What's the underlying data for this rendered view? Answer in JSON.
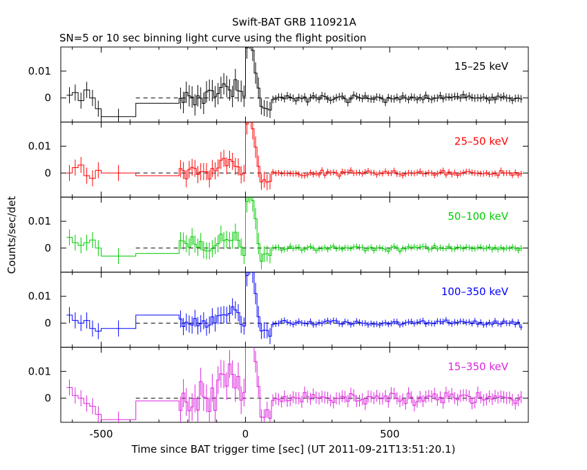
{
  "chart_data": {
    "type": "line",
    "title": "Swift-BAT GRB 110921A",
    "subtitle": "SN=5 or 10 sec binning light curve using the flight position",
    "xlabel": "Time since BAT trigger time [sec] (UT 2011-09-21T13:51:20.1)",
    "ylabel": "Counts/sec/det",
    "xlim": [
      -640,
      980
    ],
    "x_ticks": [
      -500,
      0,
      500
    ],
    "ylim": [
      -0.009,
      0.019
    ],
    "y_ticks": [
      0,
      0.01
    ],
    "y_tick_labels": [
      "0",
      "0.01"
    ],
    "grid": false,
    "panels": [
      {
        "name": "15–25 keV",
        "color": "#000000",
        "seed": 11,
        "scale": 1.0,
        "early": [
          [
            -620,
            0.001
          ],
          [
            -600,
            0.002
          ],
          [
            -580,
            -0.001
          ],
          [
            -560,
            0.003
          ],
          [
            -540,
            0.0
          ],
          [
            -520,
            -0.004
          ],
          [
            -500,
            -0.007
          ]
        ],
        "gap": [
          -380,
          -0.002
        ],
        "gap_end": -230
      },
      {
        "name": "25–50 keV",
        "color": "#ff0000",
        "seed": 23,
        "scale": 0.8,
        "early": [
          [
            -620,
            0.0
          ],
          [
            -600,
            0.002
          ],
          [
            -580,
            0.003
          ],
          [
            -560,
            -0.001
          ],
          [
            -540,
            -0.002
          ],
          [
            -520,
            0.001
          ],
          [
            -500,
            0.0
          ]
        ],
        "gap": [
          -380,
          -0.001
        ],
        "gap_end": -230
      },
      {
        "name": "50–100 keV",
        "color": "#00cc00",
        "seed": 37,
        "scale": 0.8,
        "early": [
          [
            -620,
            0.004
          ],
          [
            -600,
            0.002
          ],
          [
            -580,
            0.001
          ],
          [
            -560,
            0.002
          ],
          [
            -540,
            0.003
          ],
          [
            -520,
            0.0
          ],
          [
            -500,
            -0.003
          ]
        ],
        "gap": [
          -380,
          -0.002
        ],
        "gap_end": -230
      },
      {
        "name": "100–350 keV",
        "color": "#0000ff",
        "seed": 41,
        "scale": 0.8,
        "early": [
          [
            -620,
            0.003
          ],
          [
            -600,
            0.001
          ],
          [
            -580,
            0.0
          ],
          [
            -560,
            0.001
          ],
          [
            -540,
            -0.002
          ],
          [
            -520,
            -0.003
          ],
          [
            -500,
            -0.002
          ]
        ],
        "gap": [
          -380,
          0.003
        ],
        "gap_end": -230
      },
      {
        "name": "15–350 keV",
        "color": "#dd22dd",
        "seed": 53,
        "scale": 1.6,
        "early": [
          [
            -620,
            0.004
          ],
          [
            -600,
            0.001
          ],
          [
            -580,
            0.0
          ],
          [
            -560,
            -0.002
          ],
          [
            -540,
            -0.003
          ],
          [
            -520,
            -0.006
          ],
          [
            -500,
            -0.008
          ]
        ],
        "gap": [
          -380,
          -0.001
        ],
        "gap_end": -230
      }
    ]
  }
}
